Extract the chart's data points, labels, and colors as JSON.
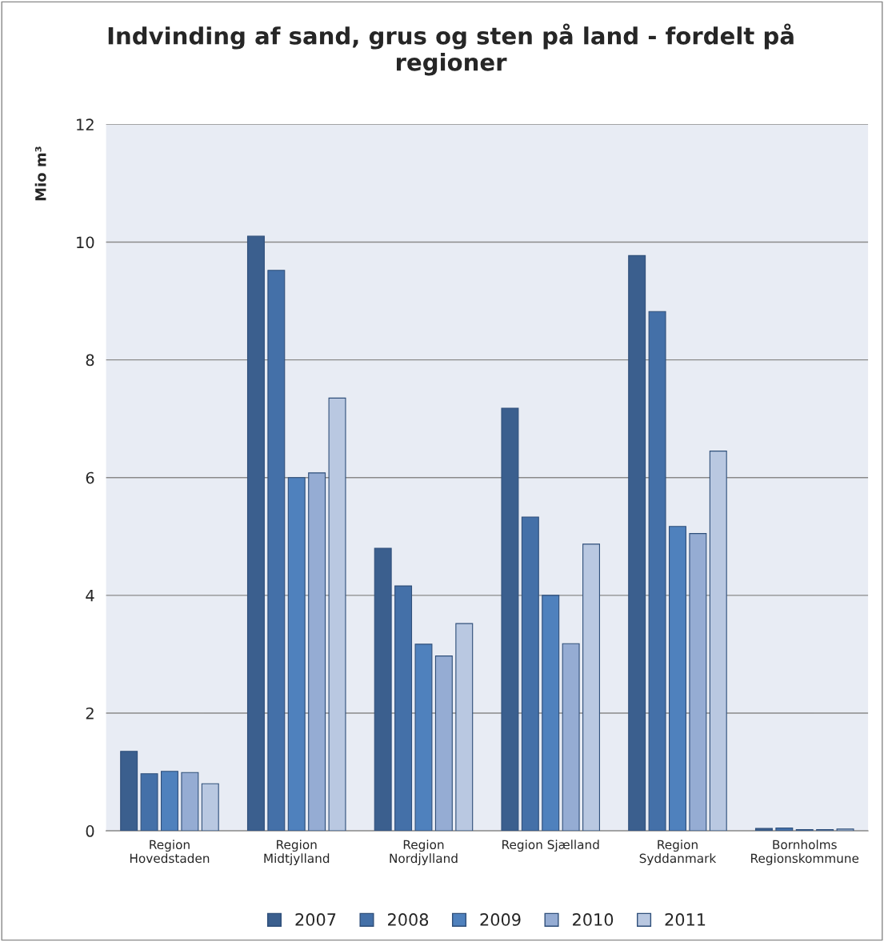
{
  "chart_data": {
    "type": "bar",
    "title": "Indvinding af sand, grus og sten på land - fordelt på\nregioner",
    "ylabel": "Mio m³",
    "categories": [
      "Region\nHovedstaden",
      "Region\nMidtjylland",
      "Region\nNordjylland",
      "Region Sjælland",
      "Region\nSyddanmark",
      "Bornholms\nRegionskommune"
    ],
    "series": [
      {
        "name": "2007",
        "color": "#3b5f8e",
        "values": [
          1.35,
          10.1,
          4.8,
          7.18,
          9.77,
          0.04
        ]
      },
      {
        "name": "2008",
        "color": "#4470a8",
        "values": [
          0.97,
          9.52,
          4.16,
          5.33,
          8.82,
          0.05
        ]
      },
      {
        "name": "2009",
        "color": "#4f81bd",
        "values": [
          1.01,
          6.0,
          3.17,
          4.0,
          5.17,
          0.02
        ]
      },
      {
        "name": "2010",
        "color": "#95acd3",
        "values": [
          0.99,
          6.08,
          2.97,
          3.18,
          5.05,
          0.02
        ]
      },
      {
        "name": "2011",
        "color": "#b9c8e1",
        "values": [
          0.8,
          7.35,
          3.52,
          4.87,
          6.45,
          0.03
        ]
      }
    ],
    "ylim": [
      0,
      12
    ],
    "yticks": [
      0,
      2,
      4,
      6,
      8,
      10,
      12
    ],
    "grid": "y",
    "legend": "bottom"
  }
}
